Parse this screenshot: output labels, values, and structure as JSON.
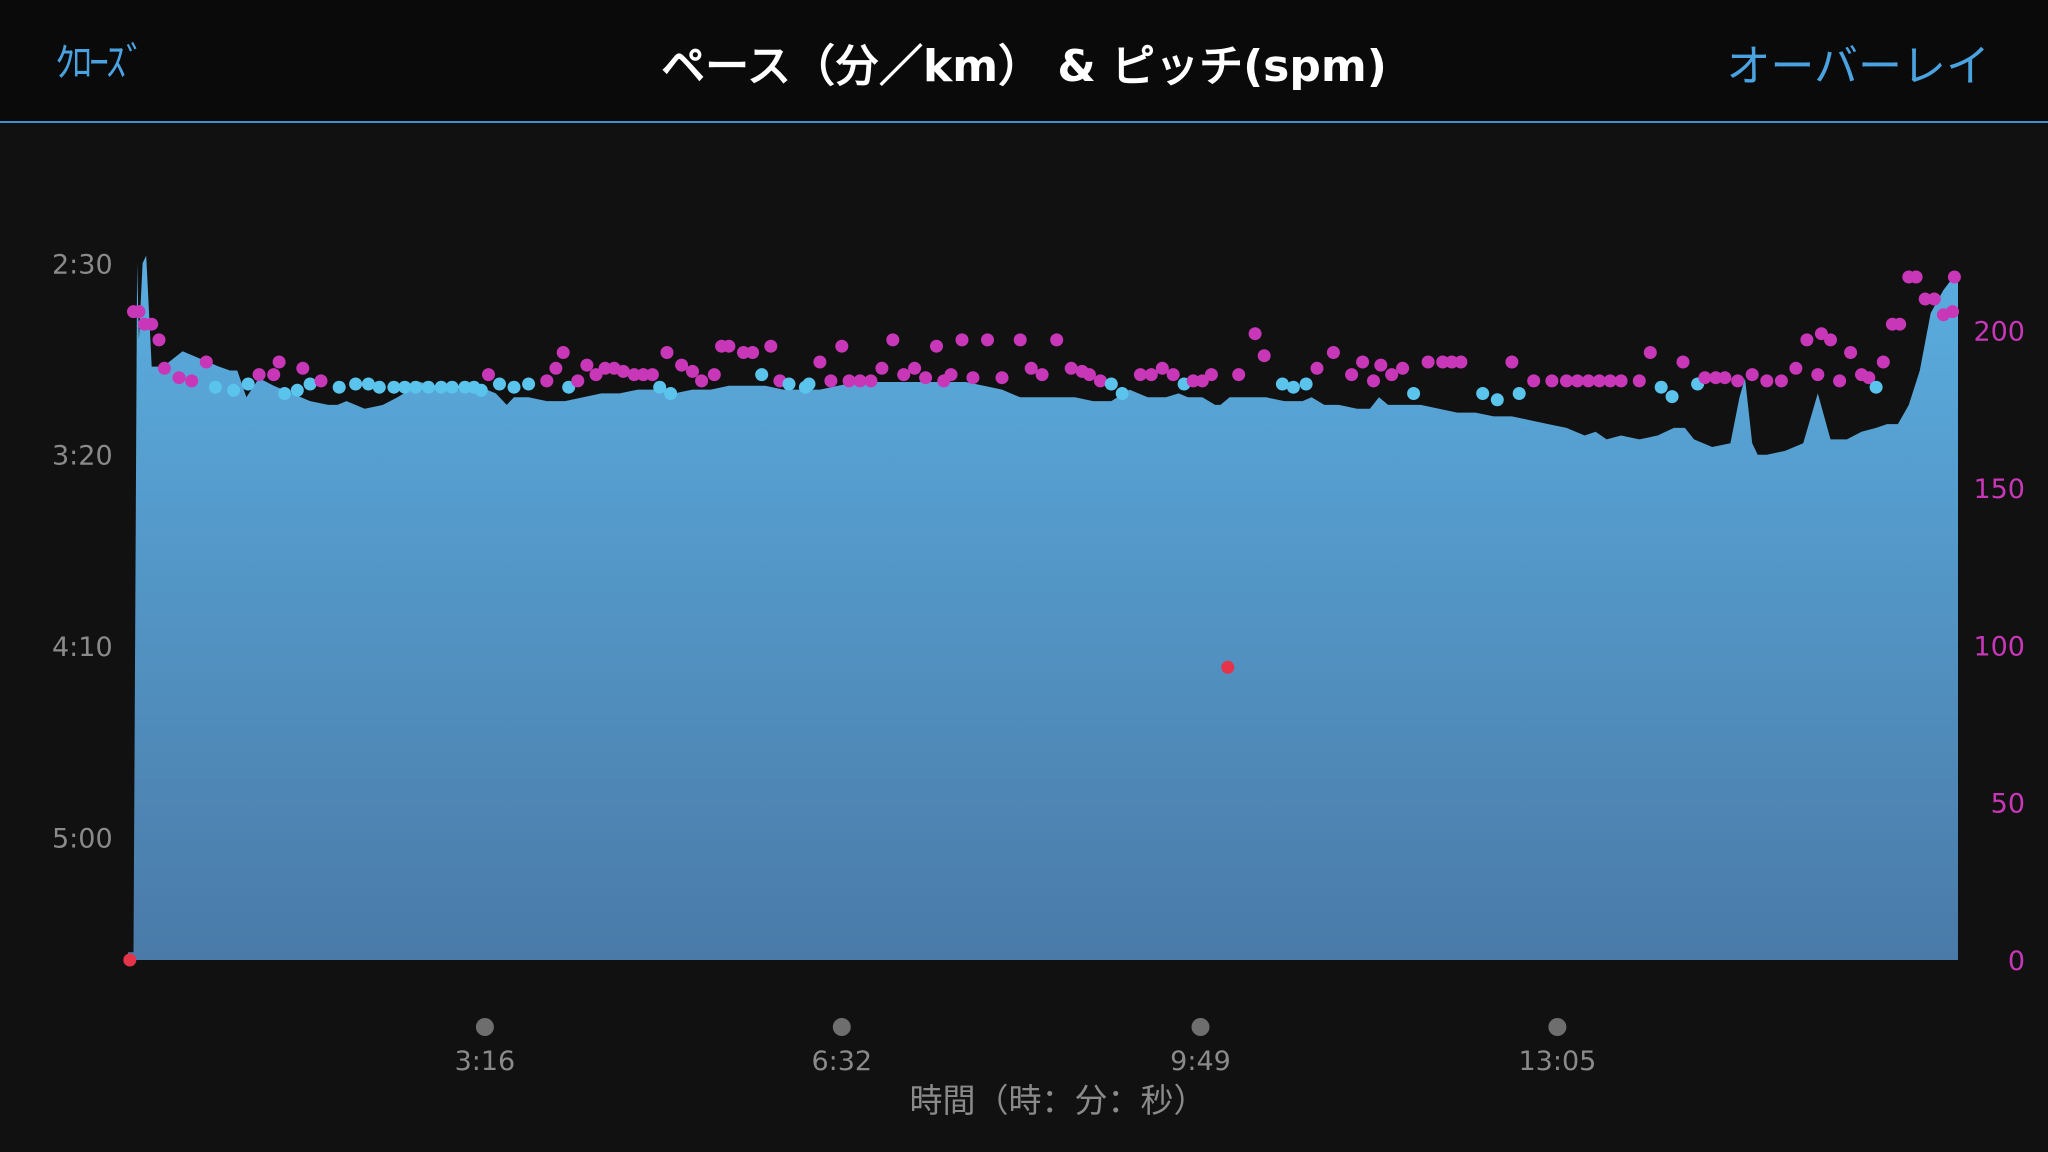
{
  "header": {
    "close_label": "ｸﾛｰｽﾞ",
    "title": "ペース（分／km） & ピッチ(spm)",
    "overlay_label": "オーバーレイ"
  },
  "colors": {
    "pace_fill_top": "#5aaee0",
    "pace_fill_bottom": "#4a7aa8",
    "cadence_magenta": "#c837b8",
    "cadence_cyan": "#5bc4ec",
    "marker_red": "#e5334a",
    "accent_blue": "#4aa3e0"
  },
  "chart_data": {
    "type": "area",
    "xlabel": "時間（時：分：秒）",
    "x_range_seconds": [
      0,
      1005
    ],
    "x_ticks": [
      {
        "t": 196,
        "label": "3:16"
      },
      {
        "t": 392,
        "label": "6:32"
      },
      {
        "t": 589,
        "label": "9:49"
      },
      {
        "t": 785,
        "label": "13:05"
      }
    ],
    "left_axis": {
      "unit": "min/km",
      "range_seconds_per_km": [
        140,
        332
      ],
      "inverted": true,
      "ticks": [
        {
          "v": 150,
          "label": "2:30"
        },
        {
          "v": 200,
          "label": "3:20"
        },
        {
          "v": 250,
          "label": "4:10"
        },
        {
          "v": 300,
          "label": "5:00"
        }
      ]
    },
    "right_axis": {
      "unit": "spm",
      "range": [
        0,
        217
      ],
      "ticks": [
        {
          "v": 0,
          "label": "0"
        },
        {
          "v": 50,
          "label": "50"
        },
        {
          "v": 100,
          "label": "100"
        },
        {
          "v": 150,
          "label": "150"
        },
        {
          "v": 200,
          "label": "200"
        }
      ]
    },
    "pace_series": {
      "name": "ペース",
      "t": [
        0,
        3,
        5,
        6,
        8,
        10,
        13,
        17,
        22,
        30,
        40,
        50,
        56,
        60,
        65,
        72,
        80,
        90,
        100,
        110,
        115,
        120,
        130,
        140,
        148,
        155,
        160,
        170,
        180,
        190,
        197,
        202,
        208,
        212,
        220,
        230,
        240,
        250,
        260,
        270,
        280,
        290,
        300,
        310,
        320,
        330,
        340,
        350,
        360,
        370,
        380,
        390,
        400,
        410,
        420,
        430,
        440,
        450,
        460,
        470,
        480,
        490,
        500,
        510,
        520,
        530,
        540,
        550,
        560,
        570,
        577,
        582,
        590,
        597,
        600,
        605,
        615,
        625,
        635,
        645,
        650,
        657,
        665,
        675,
        682,
        687,
        692,
        700,
        710,
        720,
        730,
        740,
        750,
        760,
        770,
        780,
        790,
        800,
        806,
        812,
        820,
        830,
        840,
        849,
        855,
        860,
        870,
        880,
        885,
        888,
        892,
        895,
        900,
        910,
        920,
        928,
        935,
        944,
        952,
        960,
        966,
        972,
        978,
        984,
        990,
        997,
        1005
      ],
      "pace_sec_per_km": [
        330,
        330,
        150,
        170,
        150,
        148,
        177,
        177,
        176,
        173,
        175,
        177,
        178,
        178,
        185,
        180,
        182,
        184,
        186,
        187,
        187,
        186,
        188,
        187,
        185,
        183,
        181,
        182,
        183,
        183,
        183,
        184,
        187,
        185,
        185,
        186,
        186,
        185,
        184,
        184,
        183,
        183,
        184,
        183,
        183,
        182,
        182,
        182,
        183,
        183,
        183,
        182,
        181,
        181,
        181,
        181,
        181,
        181,
        181,
        182,
        183,
        185,
        185,
        185,
        185,
        186,
        186,
        183,
        185,
        185,
        184,
        185,
        185,
        187,
        187,
        185,
        185,
        185,
        186,
        186,
        185,
        187,
        187,
        188,
        188,
        185,
        187,
        187,
        187,
        188,
        189,
        189,
        190,
        190,
        191,
        192,
        193,
        195,
        194,
        196,
        195,
        196,
        195,
        193,
        193,
        196,
        198,
        197,
        185,
        180,
        197,
        200,
        200,
        199,
        197,
        184,
        196,
        196,
        194,
        193,
        192,
        192,
        187,
        178,
        163,
        157,
        152
      ],
      "notes": "pace values are seconds per km (2:30 = 150, 3:20 = 200)"
    },
    "cadence_series": {
      "name": "ピッチ",
      "points": [
        {
          "t": 3,
          "v": 206,
          "c": "m"
        },
        {
          "t": 6,
          "v": 206,
          "c": "m"
        },
        {
          "t": 9,
          "v": 202,
          "c": "m"
        },
        {
          "t": 13,
          "v": 202,
          "c": "m"
        },
        {
          "t": 17,
          "v": 197,
          "c": "m"
        },
        {
          "t": 20,
          "v": 188,
          "c": "m"
        },
        {
          "t": 28,
          "v": 185,
          "c": "m"
        },
        {
          "t": 35,
          "v": 184,
          "c": "m"
        },
        {
          "t": 43,
          "v": 190,
          "c": "m"
        },
        {
          "t": 48,
          "v": 182,
          "c": "c"
        },
        {
          "t": 58,
          "v": 181,
          "c": "c"
        },
        {
          "t": 66,
          "v": 183,
          "c": "c"
        },
        {
          "t": 72,
          "v": 186,
          "c": "m"
        },
        {
          "t": 80,
          "v": 186,
          "c": "m"
        },
        {
          "t": 83,
          "v": 190,
          "c": "m"
        },
        {
          "t": 86,
          "v": 180,
          "c": "c"
        },
        {
          "t": 93,
          "v": 181,
          "c": "c"
        },
        {
          "t": 96,
          "v": 188,
          "c": "m"
        },
        {
          "t": 100,
          "v": 183,
          "c": "c"
        },
        {
          "t": 106,
          "v": 184,
          "c": "m"
        },
        {
          "t": 116,
          "v": 182,
          "c": "c"
        },
        {
          "t": 125,
          "v": 183,
          "c": "c"
        },
        {
          "t": 132,
          "v": 183,
          "c": "c"
        },
        {
          "t": 138,
          "v": 182,
          "c": "c"
        },
        {
          "t": 146,
          "v": 182,
          "c": "c"
        },
        {
          "t": 152,
          "v": 182,
          "c": "c"
        },
        {
          "t": 158,
          "v": 182,
          "c": "c"
        },
        {
          "t": 165,
          "v": 182,
          "c": "c"
        },
        {
          "t": 172,
          "v": 182,
          "c": "c"
        },
        {
          "t": 178,
          "v": 182,
          "c": "c"
        },
        {
          "t": 185,
          "v": 182,
          "c": "c"
        },
        {
          "t": 190,
          "v": 182,
          "c": "c"
        },
        {
          "t": 194,
          "v": 181,
          "c": "c"
        },
        {
          "t": 198,
          "v": 186,
          "c": "m"
        },
        {
          "t": 204,
          "v": 183,
          "c": "c"
        },
        {
          "t": 212,
          "v": 182,
          "c": "c"
        },
        {
          "t": 220,
          "v": 183,
          "c": "c"
        },
        {
          "t": 230,
          "v": 184,
          "c": "m"
        },
        {
          "t": 235,
          "v": 188,
          "c": "m"
        },
        {
          "t": 239,
          "v": 193,
          "c": "m"
        },
        {
          "t": 242,
          "v": 182,
          "c": "c"
        },
        {
          "t": 247,
          "v": 184,
          "c": "m"
        },
        {
          "t": 252,
          "v": 189,
          "c": "m"
        },
        {
          "t": 257,
          "v": 186,
          "c": "m"
        },
        {
          "t": 262,
          "v": 188,
          "c": "m"
        },
        {
          "t": 267,
          "v": 188,
          "c": "m"
        },
        {
          "t": 272,
          "v": 187,
          "c": "m"
        },
        {
          "t": 278,
          "v": 186,
          "c": "m"
        },
        {
          "t": 283,
          "v": 186,
          "c": "m"
        },
        {
          "t": 288,
          "v": 186,
          "c": "m"
        },
        {
          "t": 292,
          "v": 182,
          "c": "c"
        },
        {
          "t": 296,
          "v": 193,
          "c": "m"
        },
        {
          "t": 298,
          "v": 180,
          "c": "c"
        },
        {
          "t": 304,
          "v": 189,
          "c": "m"
        },
        {
          "t": 310,
          "v": 187,
          "c": "m"
        },
        {
          "t": 315,
          "v": 184,
          "c": "m"
        },
        {
          "t": 322,
          "v": 186,
          "c": "m"
        },
        {
          "t": 326,
          "v": 195,
          "c": "m"
        },
        {
          "t": 330,
          "v": 195,
          "c": "m"
        },
        {
          "t": 338,
          "v": 193,
          "c": "m"
        },
        {
          "t": 343,
          "v": 193,
          "c": "m"
        },
        {
          "t": 348,
          "v": 186,
          "c": "c"
        },
        {
          "t": 353,
          "v": 195,
          "c": "m"
        },
        {
          "t": 358,
          "v": 184,
          "c": "m"
        },
        {
          "t": 363,
          "v": 183,
          "c": "c"
        },
        {
          "t": 372,
          "v": 182,
          "c": "c"
        },
        {
          "t": 374,
          "v": 183,
          "c": "c"
        },
        {
          "t": 380,
          "v": 190,
          "c": "m"
        },
        {
          "t": 386,
          "v": 184,
          "c": "m"
        },
        {
          "t": 392,
          "v": 195,
          "c": "m"
        },
        {
          "t": 396,
          "v": 184,
          "c": "m"
        },
        {
          "t": 402,
          "v": 184,
          "c": "m"
        },
        {
          "t": 408,
          "v": 184,
          "c": "m"
        },
        {
          "t": 414,
          "v": 188,
          "c": "m"
        },
        {
          "t": 420,
          "v": 197,
          "c": "m"
        },
        {
          "t": 426,
          "v": 186,
          "c": "m"
        },
        {
          "t": 432,
          "v": 188,
          "c": "m"
        },
        {
          "t": 438,
          "v": 185,
          "c": "m"
        },
        {
          "t": 444,
          "v": 195,
          "c": "m"
        },
        {
          "t": 448,
          "v": 184,
          "c": "m"
        },
        {
          "t": 452,
          "v": 186,
          "c": "m"
        },
        {
          "t": 458,
          "v": 197,
          "c": "m"
        },
        {
          "t": 464,
          "v": 185,
          "c": "m"
        },
        {
          "t": 472,
          "v": 197,
          "c": "m"
        },
        {
          "t": 480,
          "v": 185,
          "c": "m"
        },
        {
          "t": 490,
          "v": 197,
          "c": "m"
        },
        {
          "t": 496,
          "v": 188,
          "c": "m"
        },
        {
          "t": 502,
          "v": 186,
          "c": "m"
        },
        {
          "t": 510,
          "v": 197,
          "c": "m"
        },
        {
          "t": 518,
          "v": 188,
          "c": "m"
        },
        {
          "t": 524,
          "v": 187,
          "c": "m"
        },
        {
          "t": 528,
          "v": 186,
          "c": "m"
        },
        {
          "t": 534,
          "v": 184,
          "c": "m"
        },
        {
          "t": 540,
          "v": 183,
          "c": "c"
        },
        {
          "t": 546,
          "v": 180,
          "c": "c"
        },
        {
          "t": 556,
          "v": 186,
          "c": "m"
        },
        {
          "t": 562,
          "v": 186,
          "c": "m"
        },
        {
          "t": 568,
          "v": 188,
          "c": "m"
        },
        {
          "t": 574,
          "v": 186,
          "c": "m"
        },
        {
          "t": 580,
          "v": 183,
          "c": "c"
        },
        {
          "t": 585,
          "v": 184,
          "c": "m"
        },
        {
          "t": 590,
          "v": 184,
          "c": "m"
        },
        {
          "t": 595,
          "v": 186,
          "c": "m"
        },
        {
          "t": 610,
          "v": 186,
          "c": "m"
        },
        {
          "t": 619,
          "v": 199,
          "c": "m"
        },
        {
          "t": 624,
          "v": 192,
          "c": "m"
        },
        {
          "t": 634,
          "v": 183,
          "c": "c"
        },
        {
          "t": 640,
          "v": 182,
          "c": "c"
        },
        {
          "t": 647,
          "v": 183,
          "c": "c"
        },
        {
          "t": 653,
          "v": 188,
          "c": "m"
        },
        {
          "t": 662,
          "v": 193,
          "c": "m"
        },
        {
          "t": 672,
          "v": 186,
          "c": "m"
        },
        {
          "t": 678,
          "v": 190,
          "c": "m"
        },
        {
          "t": 684,
          "v": 184,
          "c": "m"
        },
        {
          "t": 688,
          "v": 189,
          "c": "m"
        },
        {
          "t": 694,
          "v": 186,
          "c": "m"
        },
        {
          "t": 700,
          "v": 188,
          "c": "m"
        },
        {
          "t": 706,
          "v": 180,
          "c": "c"
        },
        {
          "t": 714,
          "v": 190,
          "c": "m"
        },
        {
          "t": 722,
          "v": 190,
          "c": "m"
        },
        {
          "t": 727,
          "v": 190,
          "c": "m"
        },
        {
          "t": 732,
          "v": 190,
          "c": "m"
        },
        {
          "t": 744,
          "v": 180,
          "c": "c"
        },
        {
          "t": 752,
          "v": 178,
          "c": "c"
        },
        {
          "t": 760,
          "v": 190,
          "c": "m"
        },
        {
          "t": 764,
          "v": 180,
          "c": "c"
        },
        {
          "t": 772,
          "v": 184,
          "c": "m"
        },
        {
          "t": 782,
          "v": 184,
          "c": "m"
        },
        {
          "t": 790,
          "v": 184,
          "c": "m"
        },
        {
          "t": 796,
          "v": 184,
          "c": "m"
        },
        {
          "t": 802,
          "v": 184,
          "c": "m"
        },
        {
          "t": 808,
          "v": 184,
          "c": "m"
        },
        {
          "t": 814,
          "v": 184,
          "c": "m"
        },
        {
          "t": 820,
          "v": 184,
          "c": "m"
        },
        {
          "t": 830,
          "v": 184,
          "c": "m"
        },
        {
          "t": 836,
          "v": 193,
          "c": "m"
        },
        {
          "t": 842,
          "v": 182,
          "c": "c"
        },
        {
          "t": 848,
          "v": 179,
          "c": "c"
        },
        {
          "t": 854,
          "v": 190,
          "c": "m"
        },
        {
          "t": 862,
          "v": 183,
          "c": "c"
        },
        {
          "t": 866,
          "v": 185,
          "c": "m"
        },
        {
          "t": 872,
          "v": 185,
          "c": "m"
        },
        {
          "t": 877,
          "v": 185,
          "c": "m"
        },
        {
          "t": 884,
          "v": 184,
          "c": "m"
        },
        {
          "t": 892,
          "v": 186,
          "c": "m"
        },
        {
          "t": 900,
          "v": 184,
          "c": "m"
        },
        {
          "t": 908,
          "v": 184,
          "c": "m"
        },
        {
          "t": 916,
          "v": 188,
          "c": "m"
        },
        {
          "t": 922,
          "v": 197,
          "c": "m"
        },
        {
          "t": 928,
          "v": 186,
          "c": "m"
        },
        {
          "t": 930,
          "v": 199,
          "c": "m"
        },
        {
          "t": 935,
          "v": 197,
          "c": "m"
        },
        {
          "t": 940,
          "v": 184,
          "c": "m"
        },
        {
          "t": 946,
          "v": 193,
          "c": "m"
        },
        {
          "t": 952,
          "v": 186,
          "c": "m"
        },
        {
          "t": 956,
          "v": 185,
          "c": "m"
        },
        {
          "t": 960,
          "v": 182,
          "c": "c"
        },
        {
          "t": 964,
          "v": 190,
          "c": "m"
        },
        {
          "t": 969,
          "v": 202,
          "c": "m"
        },
        {
          "t": 973,
          "v": 202,
          "c": "m"
        },
        {
          "t": 978,
          "v": 217,
          "c": "m"
        },
        {
          "t": 982,
          "v": 217,
          "c": "m"
        },
        {
          "t": 987,
          "v": 210,
          "c": "m"
        },
        {
          "t": 992,
          "v": 210,
          "c": "m"
        },
        {
          "t": 997,
          "v": 205,
          "c": "m"
        },
        {
          "t": 1002,
          "v": 206,
          "c": "m"
        },
        {
          "t": 1003,
          "v": 217,
          "c": "m"
        }
      ]
    },
    "markers": [
      {
        "t": 1,
        "v": 0,
        "type": "red-dot"
      },
      {
        "t": 604,
        "v": 93,
        "type": "red-dot"
      }
    ],
    "grid": false,
    "legend": "none"
  }
}
